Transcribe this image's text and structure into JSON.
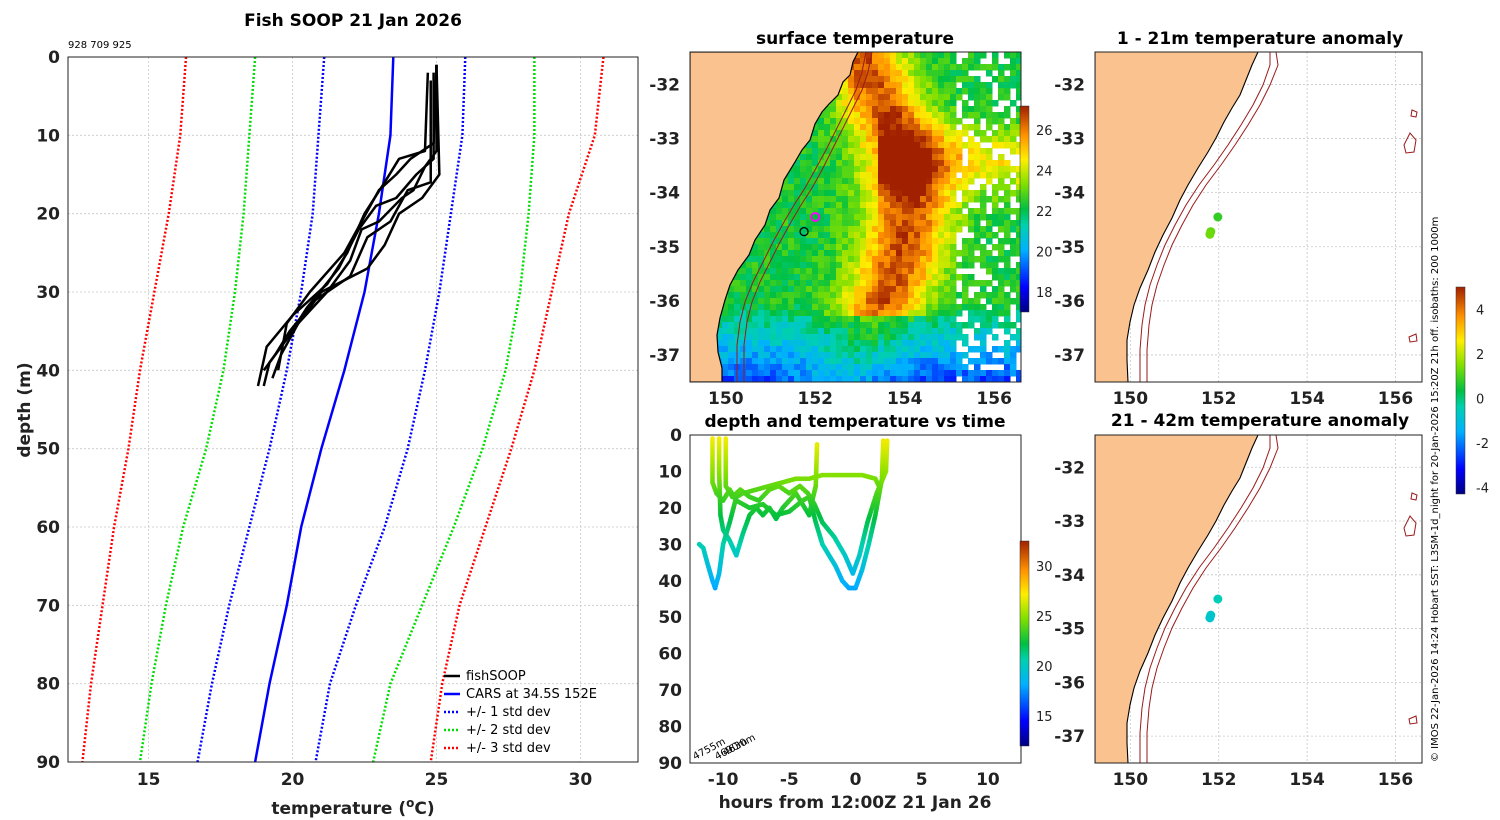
{
  "colors": {
    "land": "#f9c28f",
    "cars": "#0000ff",
    "sd1": "#0000ff",
    "sd2": "#00dd00",
    "sd3": "#ff0000",
    "fish": "#000000",
    "isobath": "#9b1a1a"
  },
  "footer_text": "© IMOS 22-Jan-2026 14:24 Hobart SST: L3SM-1d_night for 20-Jan-2026 15:20Z 21h off. isobaths: 200  1000m",
  "chart_data": [
    {
      "id": "profile",
      "type": "line",
      "title": "Fish SOOP 21 Jan 2026",
      "subtitle": "928 709 925",
      "xlabel": "temperature (°C)",
      "xlabel_main": "temperature (",
      "xlabel_sup": "o",
      "xlabel_tail": "C)",
      "ylabel": "depth (m)",
      "xlim": [
        12.2,
        32.0
      ],
      "ylim": [
        0,
        90
      ],
      "xticks": [
        15,
        20,
        25,
        30
      ],
      "yticks": [
        0,
        10,
        20,
        30,
        40,
        50,
        60,
        70,
        80,
        90
      ],
      "legend_position": "bottom-right",
      "legend": [
        "fishSOOP",
        "CARS at 34.5S 152E",
        "+/- 1 std dev",
        "+/- 2 std dev",
        "+/- 3 std dev"
      ],
      "depths": [
        0,
        10,
        20,
        30,
        40,
        50,
        60,
        70,
        80,
        90
      ],
      "cars_mean": [
        23.5,
        23.4,
        23.0,
        22.5,
        21.8,
        21.0,
        20.3,
        19.8,
        19.2,
        18.7
      ],
      "sd1_lo": [
        21.1,
        20.9,
        20.7,
        20.3,
        19.8,
        19.2,
        18.5,
        17.8,
        17.2,
        16.7
      ],
      "sd1_hi": [
        26.0,
        25.9,
        25.5,
        25.1,
        24.6,
        24.0,
        23.2,
        22.2,
        21.3,
        20.8
      ],
      "sd2_lo": [
        18.7,
        18.5,
        18.3,
        18.0,
        17.6,
        17.0,
        16.2,
        15.6,
        15.1,
        14.7
      ],
      "sd2_hi": [
        28.4,
        28.4,
        28.2,
        27.9,
        27.4,
        26.6,
        25.6,
        24.5,
        23.4,
        22.8
      ],
      "sd3_lo": [
        16.3,
        16.1,
        15.7,
        15.2,
        14.7,
        14.3,
        13.8,
        13.4,
        13.0,
        12.7
      ],
      "sd3_hi": [
        30.8,
        30.5,
        29.6,
        29.0,
        28.4,
        27.6,
        26.7,
        25.8,
        25.2,
        24.8
      ],
      "fish_casts": [
        [
          [
            25.0,
            1
          ],
          [
            25.0,
            12
          ],
          [
            24.6,
            14
          ],
          [
            24.2,
            17
          ],
          [
            23.8,
            18
          ],
          [
            23.0,
            21
          ],
          [
            22.4,
            22
          ],
          [
            22.0,
            26
          ],
          [
            21.2,
            30
          ],
          [
            20.2,
            34
          ],
          [
            19.6,
            38
          ],
          [
            19.3,
            41
          ]
        ],
        [
          [
            24.9,
            2
          ],
          [
            24.9,
            13
          ],
          [
            24.3,
            15
          ],
          [
            23.6,
            18
          ],
          [
            22.9,
            19
          ],
          [
            22.3,
            22
          ],
          [
            21.6,
            27
          ],
          [
            20.5,
            32
          ],
          [
            19.8,
            36
          ],
          [
            19.2,
            39
          ],
          [
            19.0,
            42
          ]
        ],
        [
          [
            25.0,
            1
          ],
          [
            25.1,
            15
          ],
          [
            24.5,
            18
          ],
          [
            23.7,
            20
          ],
          [
            23.2,
            24
          ],
          [
            22.6,
            27
          ],
          [
            21.0,
            30
          ],
          [
            20.4,
            33
          ],
          [
            19.6,
            37
          ],
          [
            19.0,
            40
          ]
        ],
        [
          [
            24.8,
            3
          ],
          [
            24.8,
            16
          ],
          [
            24.0,
            17
          ],
          [
            23.4,
            21
          ],
          [
            22.6,
            23
          ],
          [
            22.0,
            28
          ],
          [
            20.8,
            31
          ],
          [
            19.9,
            35
          ],
          [
            19.4,
            38
          ]
        ],
        [
          [
            24.7,
            2
          ],
          [
            24.6,
            12
          ],
          [
            23.7,
            13
          ],
          [
            23.2,
            16
          ],
          [
            22.5,
            20
          ],
          [
            21.9,
            25
          ],
          [
            21.2,
            29
          ],
          [
            20.0,
            33
          ],
          [
            19.1,
            37
          ],
          [
            18.8,
            42
          ]
        ],
        [
          [
            25.0,
            1
          ],
          [
            24.9,
            11
          ],
          [
            24.1,
            13
          ],
          [
            23.6,
            15
          ],
          [
            23.0,
            17
          ],
          [
            22.4,
            21
          ],
          [
            21.8,
            25
          ],
          [
            20.6,
            30
          ],
          [
            19.8,
            34
          ],
          [
            19.5,
            40
          ]
        ]
      ]
    },
    {
      "id": "sst_map",
      "type": "heatmap",
      "title": "surface temperature",
      "xlim": [
        149.2,
        156.6
      ],
      "ylim": [
        -37.5,
        -31.4
      ],
      "xticks": [
        150,
        152,
        154,
        156
      ],
      "yticks": [
        -32,
        -33,
        -34,
        -35,
        -36,
        -37
      ],
      "colorbar_ticks": [
        18,
        20,
        22,
        24,
        26
      ],
      "colorbar_range": [
        17,
        27.2
      ],
      "ship_markers": [
        {
          "lon": 152.0,
          "lat": -34.45,
          "color": "#ff00ff"
        },
        {
          "lon": 151.75,
          "lat": -34.72,
          "color": "#000000"
        }
      ]
    },
    {
      "id": "anom_1_21",
      "type": "scatter",
      "title": "1 - 21m temperature anomaly",
      "xlim": [
        149.2,
        156.6
      ],
      "ylim": [
        -37.5,
        -31.4
      ],
      "xticks": [
        150,
        152,
        154,
        156
      ],
      "yticks": [
        -32,
        -33,
        -34,
        -35,
        -36,
        -37
      ],
      "points": [
        {
          "lon": 151.98,
          "lat": -34.45,
          "anom": 0.8
        },
        {
          "lon": 151.82,
          "lat": -34.72,
          "anom": 1.2
        },
        {
          "lon": 151.8,
          "lat": -34.77,
          "anom": 1.3
        }
      ],
      "colorbar_ticks": [
        -4,
        -2,
        0,
        2,
        4
      ],
      "colorbar_range": [
        -4.3,
        5
      ]
    },
    {
      "id": "anom_21_42",
      "type": "scatter",
      "title": "21 - 42m temperature anomaly",
      "xlim": [
        149.2,
        156.6
      ],
      "ylim": [
        -37.5,
        -31.4
      ],
      "xticks": [
        150,
        152,
        154,
        156
      ],
      "yticks": [
        -32,
        -33,
        -34,
        -35,
        -36,
        -37
      ],
      "points": [
        {
          "lon": 151.98,
          "lat": -34.45,
          "anom": -0.5
        },
        {
          "lon": 151.82,
          "lat": -34.75,
          "anom": -0.7
        },
        {
          "lon": 151.8,
          "lat": -34.8,
          "anom": -0.8
        }
      ]
    },
    {
      "id": "depth_time",
      "type": "scatter",
      "title": "depth and temperature vs time",
      "xlabel": "hours from 12:00Z 21 Jan 26",
      "xlim": [
        -12.5,
        12.5
      ],
      "ylim": [
        0,
        90
      ],
      "xticks": [
        -10,
        -5,
        0,
        5,
        10
      ],
      "yticks": [
        0,
        10,
        20,
        30,
        40,
        50,
        60,
        70,
        80,
        90
      ],
      "colorbar_ticks": [
        15,
        20,
        25,
        30
      ],
      "colorbar_range": [
        12,
        32.5
      ],
      "annotations": [
        "4755m",
        "4690m",
        "4630m"
      ],
      "tracks": [
        [
          [
            -10.3,
            1
          ],
          [
            -10.3,
            10
          ],
          [
            -10.2,
            22
          ],
          [
            -10.0,
            26
          ],
          [
            -9.5,
            29
          ],
          [
            -9.0,
            33
          ],
          [
            -8.5,
            27
          ],
          [
            -8.0,
            22
          ],
          [
            -7.5,
            20
          ],
          [
            -7.0,
            22
          ],
          [
            -6.5,
            20
          ],
          [
            -6.0,
            23
          ],
          [
            -5.5,
            20
          ],
          [
            -5.0,
            18
          ],
          [
            -4.5,
            16
          ],
          [
            -4.0,
            19
          ],
          [
            -3.5,
            22
          ],
          [
            -3.2,
            17
          ],
          [
            -3.0,
            14
          ],
          [
            -2.9,
            2
          ]
        ],
        [
          [
            -11.8,
            30
          ],
          [
            -11.5,
            31
          ],
          [
            -11.2,
            35
          ],
          [
            -10.8,
            40
          ],
          [
            -10.6,
            42
          ],
          [
            -10.3,
            38
          ],
          [
            -10.0,
            30
          ],
          [
            -9.5,
            24
          ],
          [
            -9.0,
            17
          ],
          [
            -8.5,
            16
          ],
          [
            -7.5,
            15
          ],
          [
            -6.5,
            14
          ],
          [
            -5.5,
            13
          ],
          [
            -4.5,
            12
          ],
          [
            -3.5,
            12
          ],
          [
            -2.5,
            11
          ],
          [
            -1.0,
            11
          ],
          [
            0.5,
            11
          ],
          [
            1.5,
            12
          ],
          [
            1.9,
            15
          ]
        ],
        [
          [
            -10.8,
            1
          ],
          [
            -10.8,
            13
          ],
          [
            -10.5,
            16
          ],
          [
            -10.0,
            18
          ],
          [
            -9.5,
            15
          ],
          [
            -9.0,
            18
          ],
          [
            -8.0,
            20
          ],
          [
            -7.0,
            19
          ],
          [
            -6.0,
            22
          ],
          [
            -5.0,
            21
          ],
          [
            -4.0,
            18
          ],
          [
            -3.5,
            17
          ],
          [
            -3.0,
            24
          ],
          [
            -2.5,
            30
          ],
          [
            -2.0,
            33
          ],
          [
            -1.5,
            36
          ],
          [
            -1.0,
            40
          ],
          [
            -0.5,
            42
          ],
          [
            0.0,
            42
          ],
          [
            0.5,
            37
          ],
          [
            1.0,
            30
          ],
          [
            1.5,
            22
          ],
          [
            2.0,
            12
          ],
          [
            2.1,
            1
          ]
        ],
        [
          [
            -9.8,
            1
          ],
          [
            -9.8,
            14
          ],
          [
            -9.3,
            17
          ],
          [
            -8.7,
            15
          ],
          [
            -8.0,
            17
          ],
          [
            -7.3,
            18
          ],
          [
            -6.5,
            15
          ],
          [
            -5.8,
            14
          ],
          [
            -5.0,
            16
          ],
          [
            -4.2,
            14
          ],
          [
            -3.6,
            16
          ],
          [
            -3.1,
            19
          ],
          [
            -2.5,
            24
          ],
          [
            -1.6,
            28
          ],
          [
            -0.8,
            33
          ],
          [
            -0.2,
            38
          ],
          [
            0.3,
            33
          ],
          [
            0.9,
            24
          ],
          [
            1.6,
            16
          ],
          [
            2.3,
            10
          ],
          [
            2.4,
            1
          ]
        ]
      ]
    }
  ]
}
